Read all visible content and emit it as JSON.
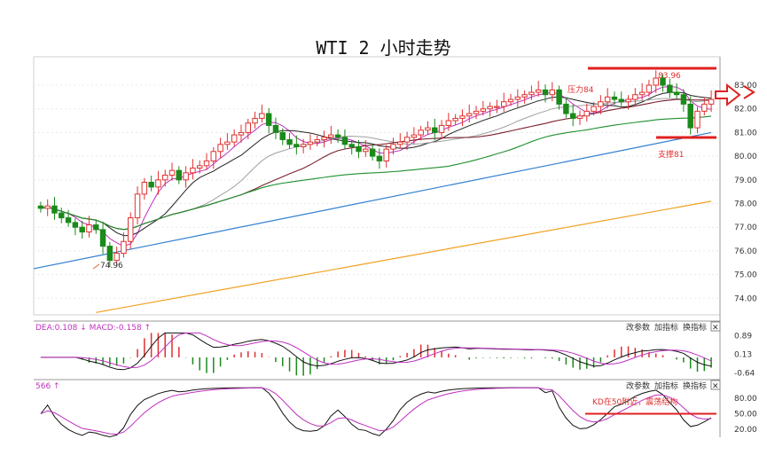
{
  "title": "WTI 2 小时走势",
  "chart_data": {
    "type": "candlestick",
    "title": "WTI 2 小时走势",
    "price_axis": {
      "ticks": [
        "74.00",
        "75.00",
        "76.00",
        "77.00",
        "78.00",
        "79.00",
        "80.00",
        "81.00",
        "82.00",
        "83.00"
      ],
      "ylim": [
        73.3,
        84.2
      ]
    },
    "close": [
      77.8,
      77.9,
      77.6,
      77.4,
      77.2,
      77.0,
      76.8,
      77.1,
      76.9,
      76.2,
      75.6,
      75.9,
      76.4,
      77.4,
      78.4,
      78.9,
      78.7,
      79.0,
      79.2,
      79.4,
      79.0,
      79.3,
      79.5,
      79.6,
      79.8,
      80.2,
      80.5,
      80.6,
      80.9,
      81.0,
      81.4,
      81.6,
      81.8,
      81.3,
      81.0,
      80.7,
      80.5,
      80.4,
      80.5,
      80.6,
      80.7,
      80.8,
      80.9,
      80.8,
      80.5,
      80.4,
      80.2,
      80.3,
      80.0,
      79.8,
      80.3,
      80.5,
      80.6,
      80.8,
      80.9,
      81.1,
      81.2,
      81.0,
      81.3,
      81.5,
      81.6,
      81.7,
      81.8,
      81.9,
      82.0,
      82.1,
      82.1,
      82.3,
      82.4,
      82.5,
      82.6,
      82.7,
      82.8,
      82.6,
      82.8,
      82.2,
      81.8,
      81.6,
      81.7,
      81.9,
      82.1,
      82.3,
      82.5,
      82.4,
      82.3,
      82.4,
      82.6,
      82.7,
      83.0,
      83.3,
      83.0,
      82.7,
      82.6,
      82.2,
      81.2,
      81.9,
      82.2,
      82.4
    ],
    "annotations": {
      "low": "74.96",
      "high": "83.96",
      "resistance": "压力84",
      "support": "支撑81",
      "kd_note": "KD在50附近，震荡结构"
    },
    "resistance_level": 84.0,
    "support_level": 81.0,
    "macd": {
      "label": "DEA:0.108 ↓ MACD:-0.158 ↑",
      "ticks": [
        "0.89",
        "0.13",
        "-0.64"
      ],
      "ylim": [
        -0.8,
        1.05
      ]
    },
    "kd": {
      "label": "566 ↑",
      "ticks": [
        "80.00",
        "50.00",
        "20.00"
      ],
      "ylim": [
        5,
        95
      ],
      "level": 50
    },
    "panel_links": {
      "change_params": "改参数",
      "add_indicator": "加指标",
      "switch_indicator": "换指标"
    },
    "close_glyph": "✕",
    "colors": {
      "up": "#e03030",
      "down": "#1a8a1a",
      "ma_long": "#f0a020",
      "ma_mid": "#2f7fd0",
      "ma_short": "#1e8f2e",
      "k_line": "#111111",
      "d_line": "#c030c0",
      "level_line": "#e02020"
    }
  }
}
